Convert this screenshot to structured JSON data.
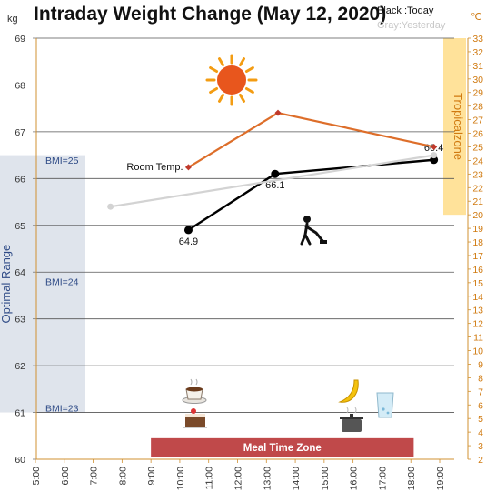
{
  "chart_data": {
    "type": "line",
    "title": "Intraday Weight Change (May 12, 2020)",
    "legend": {
      "today": "Black :Today",
      "yesterday": "Gray:Yesterday"
    },
    "y_left": {
      "unit": "kg",
      "min": 60,
      "max": 69,
      "ticks": [
        60,
        61,
        62,
        63,
        64,
        65,
        66,
        67,
        68,
        69
      ]
    },
    "y_right": {
      "unit": "℃",
      "min": 2,
      "max": 33,
      "ticks": [
        2,
        3,
        4,
        5,
        6,
        7,
        8,
        9,
        10,
        11,
        12,
        13,
        14,
        15,
        16,
        17,
        18,
        19,
        20,
        21,
        22,
        23,
        24,
        25,
        26,
        27,
        28,
        29,
        30,
        31,
        32,
        33
      ]
    },
    "x": {
      "ticks": [
        "5:00",
        "6:00",
        "7:00",
        "8:00",
        "9:00",
        "10:00",
        "11:00",
        "12:00",
        "13:00",
        "14:00",
        "15:00",
        "16:00",
        "17:00",
        "18:00",
        "19:00"
      ]
    },
    "series": [
      {
        "name": "Today",
        "color": "#000000",
        "axis": "left",
        "points": [
          {
            "x": 10.3,
            "y": 64.9,
            "label": "64.9"
          },
          {
            "x": 13.3,
            "y": 66.1,
            "label": "66.1"
          },
          {
            "x": 18.8,
            "y": 66.4,
            "label": "66.4"
          }
        ]
      },
      {
        "name": "Yesterday",
        "color": "#d3d3d3",
        "axis": "left",
        "points": [
          {
            "x": 7.6,
            "y": 65.4
          },
          {
            "x": 18.8,
            "y": 66.5
          }
        ]
      },
      {
        "name": "Room Temp.",
        "color": "#dd6e2a",
        "axis": "right",
        "points": [
          {
            "x": 10.3,
            "y": 23.5
          },
          {
            "x": 13.4,
            "y": 27.5
          },
          {
            "x": 18.8,
            "y": 25.0
          }
        ]
      }
    ],
    "bands": [
      {
        "label": "Optimal Range",
        "from": 61,
        "to": 66.5,
        "axis": "left",
        "color": "#dfe4ec"
      },
      {
        "label": "Tropicalzone",
        "from": 20,
        "to": 33,
        "axis": "right",
        "color": "#ffe29a"
      },
      {
        "label": "Meal Time Zone",
        "x_from": 9,
        "x_to": 18.1,
        "y_from": 60.05,
        "y_to": 60.45,
        "color": "#c0494a"
      }
    ],
    "annotations": [
      {
        "text": "BMI=25",
        "y": 66.4
      },
      {
        "text": "BMI=24",
        "y": 63.8
      },
      {
        "text": "BMI=23",
        "y": 61.1
      },
      {
        "text": "Room Temp.",
        "x": 8.6,
        "y": 66.3
      }
    ],
    "icons": [
      "sun-icon",
      "vacuum-cleaner-icon",
      "coffee-cup-icon",
      "cake-icon",
      "banana-icon",
      "water-glass-icon",
      "cooking-pot-icon"
    ],
    "grid": true
  }
}
